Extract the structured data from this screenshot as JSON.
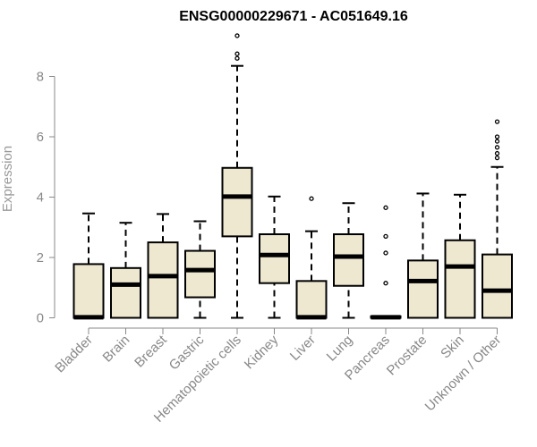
{
  "chart_data": {
    "type": "boxplot",
    "title": "ENSG00000229671 - AC051649.16",
    "xlabel": "",
    "ylabel": "Expression",
    "ylim": [
      0,
      9.5
    ],
    "yticks": [
      0,
      2,
      4,
      6,
      8
    ],
    "grid": false,
    "colors": {
      "box_fill": "#eee8d0",
      "outline": "#000000",
      "axis_text": "#888888"
    },
    "categories": [
      "Bladder",
      "Brain",
      "Breast",
      "Gastric",
      "Hematopoietic cells",
      "Kidney",
      "Liver",
      "Lung",
      "Pancreas",
      "Prostate",
      "Skin",
      "Unknown / Other"
    ],
    "boxes": [
      {
        "category": "Bladder",
        "whisker_low": 0,
        "q1": 0,
        "median": 0.02,
        "q3": 1.78,
        "whisker_high": 3.46,
        "outliers": []
      },
      {
        "category": "Brain",
        "whisker_low": 0,
        "q1": 0,
        "median": 1.1,
        "q3": 1.65,
        "whisker_high": 3.15,
        "outliers": []
      },
      {
        "category": "Breast",
        "whisker_low": 0,
        "q1": 0,
        "median": 1.38,
        "q3": 2.5,
        "whisker_high": 3.44,
        "outliers": []
      },
      {
        "category": "Gastric",
        "whisker_low": 0,
        "q1": 0.68,
        "median": 1.58,
        "q3": 2.22,
        "whisker_high": 3.2,
        "outliers": []
      },
      {
        "category": "Hematopoietic cells",
        "whisker_low": 0,
        "q1": 2.7,
        "median": 4.02,
        "q3": 4.97,
        "whisker_high": 8.35,
        "outliers": [
          8.6,
          8.75,
          9.35
        ]
      },
      {
        "category": "Kidney",
        "whisker_low": 0,
        "q1": 1.15,
        "median": 2.08,
        "q3": 2.77,
        "whisker_high": 4.02,
        "outliers": []
      },
      {
        "category": "Liver",
        "whisker_low": 0,
        "q1": 0,
        "median": 0.02,
        "q3": 1.22,
        "whisker_high": 2.87,
        "outliers": [
          3.95
        ]
      },
      {
        "category": "Lung",
        "whisker_low": 0,
        "q1": 1.06,
        "median": 2.03,
        "q3": 2.77,
        "whisker_high": 3.8,
        "outliers": []
      },
      {
        "category": "Pancreas",
        "whisker_low": 0,
        "q1": 0,
        "median": 0.02,
        "q3": 0.05,
        "whisker_high": 0.05,
        "outliers": [
          1.15,
          2.15,
          2.7,
          3.65
        ]
      },
      {
        "category": "Prostate",
        "whisker_low": 0,
        "q1": 0,
        "median": 1.22,
        "q3": 1.9,
        "whisker_high": 4.12,
        "outliers": []
      },
      {
        "category": "Skin",
        "whisker_low": 0,
        "q1": 0,
        "median": 1.7,
        "q3": 2.57,
        "whisker_high": 4.08,
        "outliers": []
      },
      {
        "category": "Unknown / Other",
        "whisker_low": 0,
        "q1": 0,
        "median": 0.9,
        "q3": 2.1,
        "whisker_high": 5.0,
        "outliers": [
          5.3,
          5.45,
          5.65,
          5.85,
          6.0,
          6.5
        ]
      }
    ]
  }
}
